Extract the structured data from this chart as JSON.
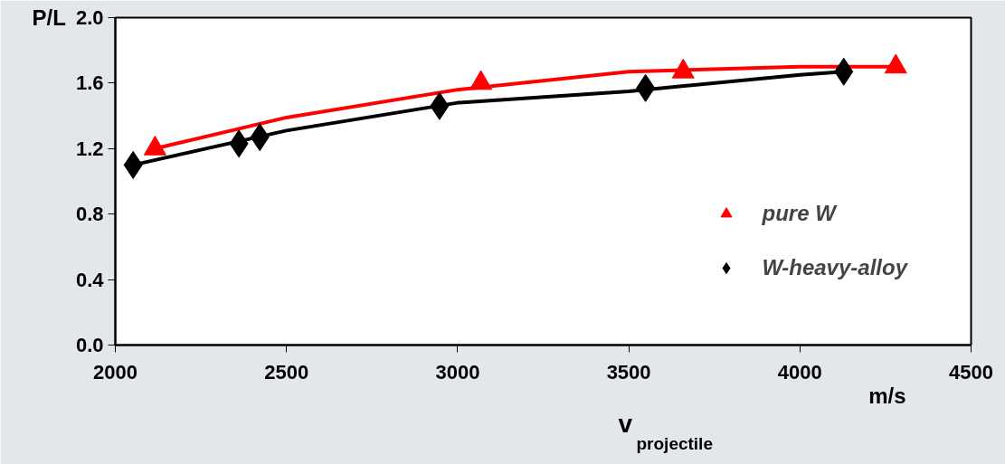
{
  "chart_data": {
    "type": "scatter",
    "ylabel": "P/L",
    "xlabel": "v$_{projectile}$",
    "annotations": [
      "m/s"
    ],
    "xlim": [
      2000,
      4500
    ],
    "xticks": [
      2000,
      2500,
      3000,
      3500,
      4000,
      4500
    ],
    "ylim": [
      0,
      2.0
    ],
    "yticks": [
      {
        "value": 0,
        "label": "0.0"
      },
      0.4,
      0.8,
      1.2,
      1.6,
      {
        "value": 2,
        "label": "2.0"
      }
    ],
    "grid": false,
    "legend": "bottom right",
    "series": [
      {
        "type": "line",
        "color": "#ff0000",
        "marker": "none",
        "x": [
          2116,
          2500,
          3000,
          3500,
          4000,
          4280
        ],
        "values": [
          1.2,
          1.39,
          1.56,
          1.67,
          1.7,
          1.7
        ]
      },
      {
        "type": "line",
        "color": "#000000",
        "marker": "none",
        "x": [
          2052,
          2500,
          3000,
          3500,
          4000,
          4128
        ],
        "values": [
          1.1,
          1.31,
          1.48,
          1.55,
          1.65,
          1.67
        ]
      },
      {
        "name": "pure W",
        "color": "#ff0000",
        "marker": "triangle",
        "x": [
          2116,
          3068,
          3659,
          4280
        ],
        "values": [
          1.2,
          1.6,
          1.67,
          1.7
        ]
      },
      {
        "name": "W-heavy-alloy",
        "color": "#000000",
        "marker": "diamond",
        "x": [
          2052,
          2361,
          2422,
          2947,
          3549,
          4128
        ],
        "values": [
          1.1,
          1.23,
          1.27,
          1.46,
          1.57,
          1.67
        ]
      }
    ]
  }
}
